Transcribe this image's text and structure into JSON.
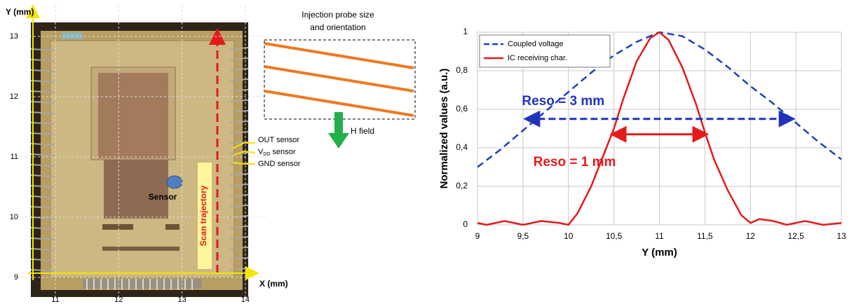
{
  "photo": {
    "y_axis_label": "Y (mm)",
    "x_axis_label": "X (mm)",
    "xticks": [
      11,
      12,
      13,
      14
    ],
    "yticks": [
      9,
      10,
      11,
      12,
      13
    ],
    "probe_label": [
      "Injection probe size",
      "and orientation"
    ],
    "field_label": "H field",
    "out_pin": "OUT sensor",
    "vdd_pin": {
      "main": "V",
      "sub": "DD",
      "after": "sensor"
    },
    "gnd_pin": "GND sensor",
    "sensor_label": "Sensor",
    "scan_label": "Scan trajectory"
  },
  "chart_data": {
    "type": "line",
    "xlabel": "Y (mm)",
    "ylabel": "Normalized values (a.u.)",
    "xlim": [
      9,
      13
    ],
    "ylim": [
      0,
      1
    ],
    "xticks": [
      9,
      {
        "value": 9.5,
        "label": "9,5"
      },
      10,
      {
        "value": 10.5,
        "label": "10,5"
      },
      11,
      {
        "value": 11.5,
        "label": "11,5"
      },
      12,
      {
        "value": 12.5,
        "label": "12,5"
      },
      13
    ],
    "yticks": [
      0,
      {
        "value": 0.2,
        "label": "0,2"
      },
      {
        "value": 0.4,
        "label": "0,4"
      },
      {
        "value": 0.6,
        "label": "0,6"
      },
      {
        "value": 0.8,
        "label": "0,8"
      },
      1
    ],
    "grid": true,
    "legend": "upper left",
    "series": [
      {
        "name": "Coupled voltage",
        "color": "#1f3fbf",
        "style": "dashed",
        "x": [
          9,
          9.25,
          9.5,
          9.75,
          10,
          10.25,
          10.5,
          10.75,
          11,
          11.25,
          11.5,
          11.75,
          12,
          12.25,
          12.5,
          12.75,
          13
        ],
        "values": [
          0.3,
          0.39,
          0.49,
          0.59,
          0.69,
          0.79,
          0.88,
          0.95,
          1.0,
          0.98,
          0.91,
          0.82,
          0.72,
          0.63,
          0.53,
          0.43,
          0.34
        ]
      },
      {
        "name": "IC receiving char.",
        "color": "#e41a1a",
        "style": "solid",
        "x": [
          9,
          9.1,
          9.3,
          9.5,
          9.7,
          9.9,
          10,
          10.1,
          10.25,
          10.4,
          10.5,
          10.6,
          10.75,
          10.9,
          11,
          11.1,
          11.25,
          11.4,
          11.5,
          11.6,
          11.75,
          11.9,
          12,
          12.1,
          12.25,
          12.4,
          12.6,
          12.8,
          13
        ],
        "values": [
          0.01,
          0.0,
          0.02,
          0.0,
          0.02,
          0.01,
          0.0,
          0.06,
          0.2,
          0.38,
          0.5,
          0.65,
          0.85,
          0.97,
          1.0,
          0.96,
          0.82,
          0.63,
          0.48,
          0.34,
          0.18,
          0.05,
          0.01,
          0.03,
          0.02,
          0.0,
          0.02,
          0.0,
          0.01
        ]
      }
    ],
    "annotations": [
      {
        "text": "Reso = 3 mm",
        "color": "#2233bb",
        "x": [
          9.55,
          12.45
        ],
        "y": 0.55
      },
      {
        "text": "Reso = 1 mm",
        "color": "#e41a1a",
        "x": [
          10.5,
          11.5
        ],
        "y": 0.47
      }
    ]
  }
}
